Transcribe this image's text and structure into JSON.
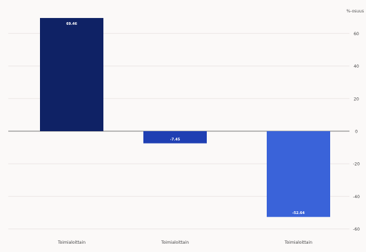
{
  "chart_data": {
    "type": "bar",
    "unit_label": "%-osuus",
    "categories": [
      "Toimialoittain",
      "Toimialoittain",
      "Toimialoittain"
    ],
    "values": [
      69.46,
      -7.45,
      -52.64
    ],
    "value_labels": [
      "69.46",
      "-7.45",
      "-52.64"
    ],
    "yticks": [
      60,
      40,
      20,
      0,
      -20,
      -40,
      -60
    ],
    "ylim": [
      -60,
      70
    ],
    "grid": true,
    "colors": [
      "#0f2265",
      "#1f3fb3",
      "#3a63d9"
    ]
  }
}
